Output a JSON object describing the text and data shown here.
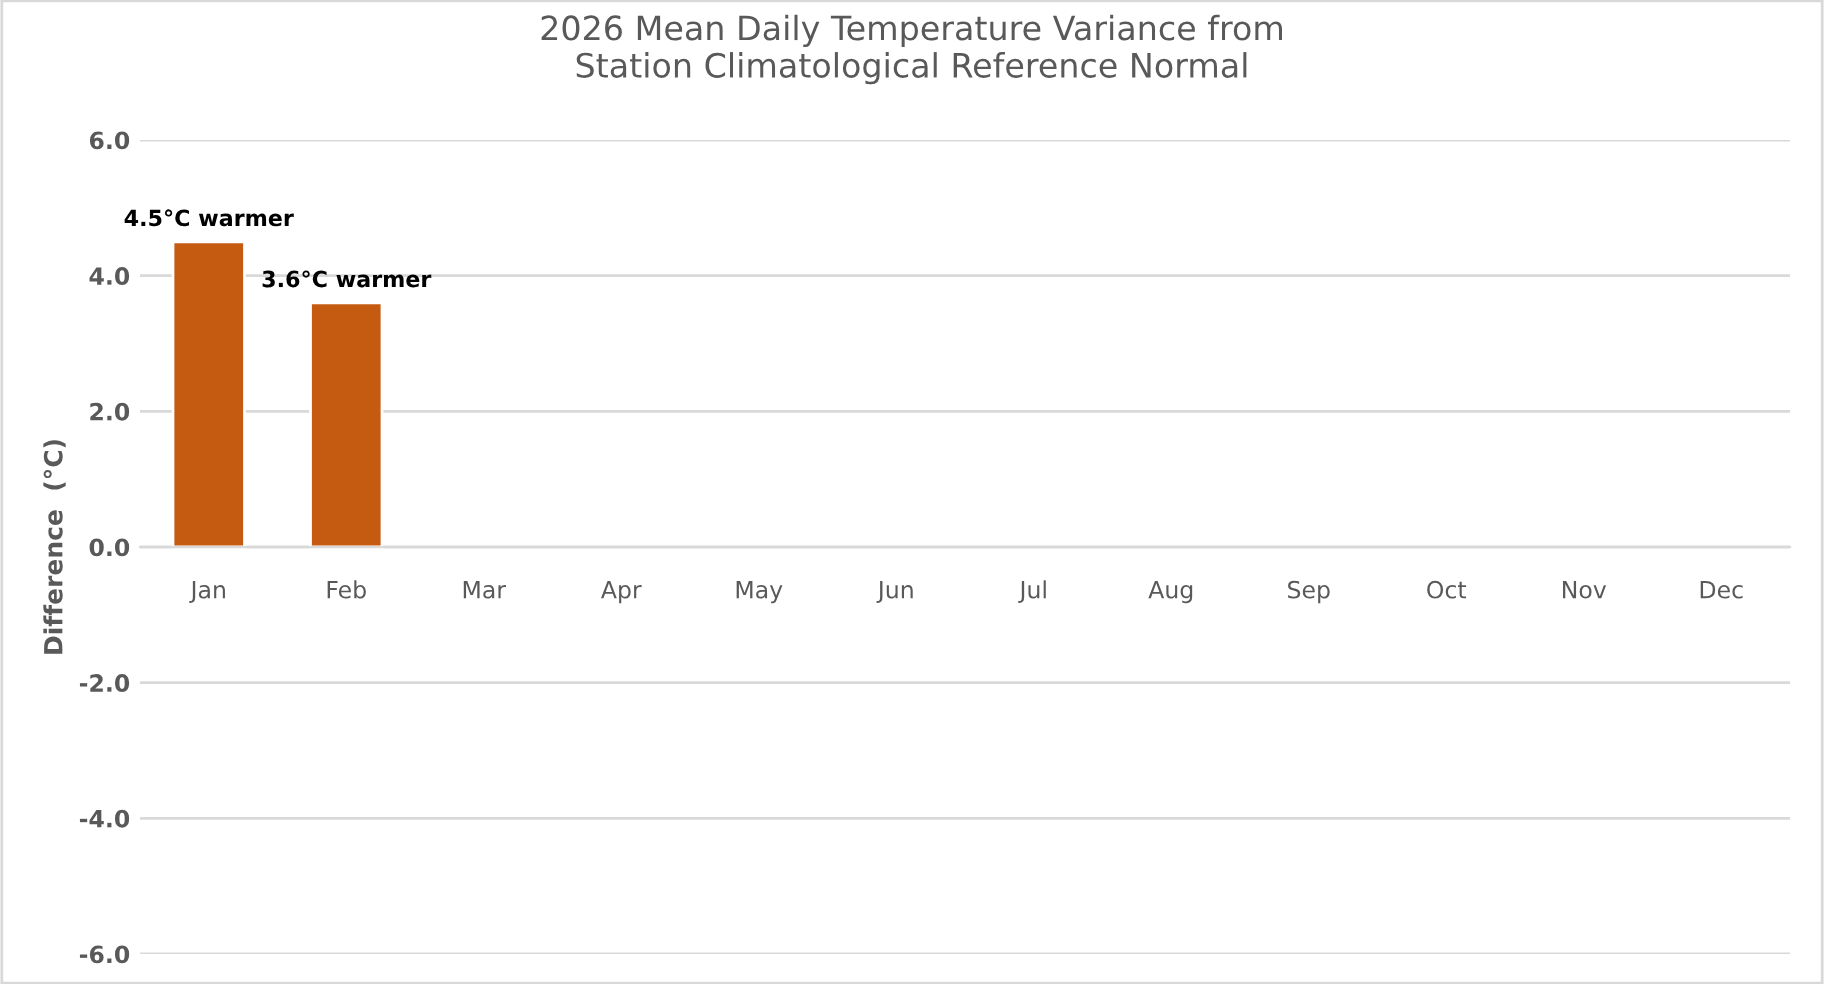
{
  "chart_data": {
    "type": "bar",
    "title": "2026 Mean Daily Temperature Variance from\nStation Climatological Reference Normal",
    "ylabel": "Difference  (°C)",
    "categories": [
      "Jan",
      "Feb",
      "Mar",
      "Apr",
      "May",
      "Jun",
      "Jul",
      "Aug",
      "Sep",
      "Oct",
      "Nov",
      "Dec"
    ],
    "values": [
      4.5,
      3.6,
      null,
      null,
      null,
      null,
      null,
      null,
      null,
      null,
      null,
      null
    ],
    "value_labels": [
      "4.5°C warmer",
      "3.6°C warmer",
      null,
      null,
      null,
      null,
      null,
      null,
      null,
      null,
      null,
      null
    ],
    "color": "#c55a11",
    "ylim": [
      -6,
      6
    ],
    "yticks": [
      {
        "value": -6,
        "label": "-6.0"
      },
      {
        "value": -4,
        "label": "-4.0"
      },
      {
        "value": -2,
        "label": "-2.0"
      },
      {
        "value": 0,
        "label": "0.0"
      },
      {
        "value": 2,
        "label": "2.0"
      },
      {
        "value": 4,
        "label": "4.0"
      },
      {
        "value": 6,
        "label": "6.0"
      }
    ],
    "grid": "y"
  }
}
